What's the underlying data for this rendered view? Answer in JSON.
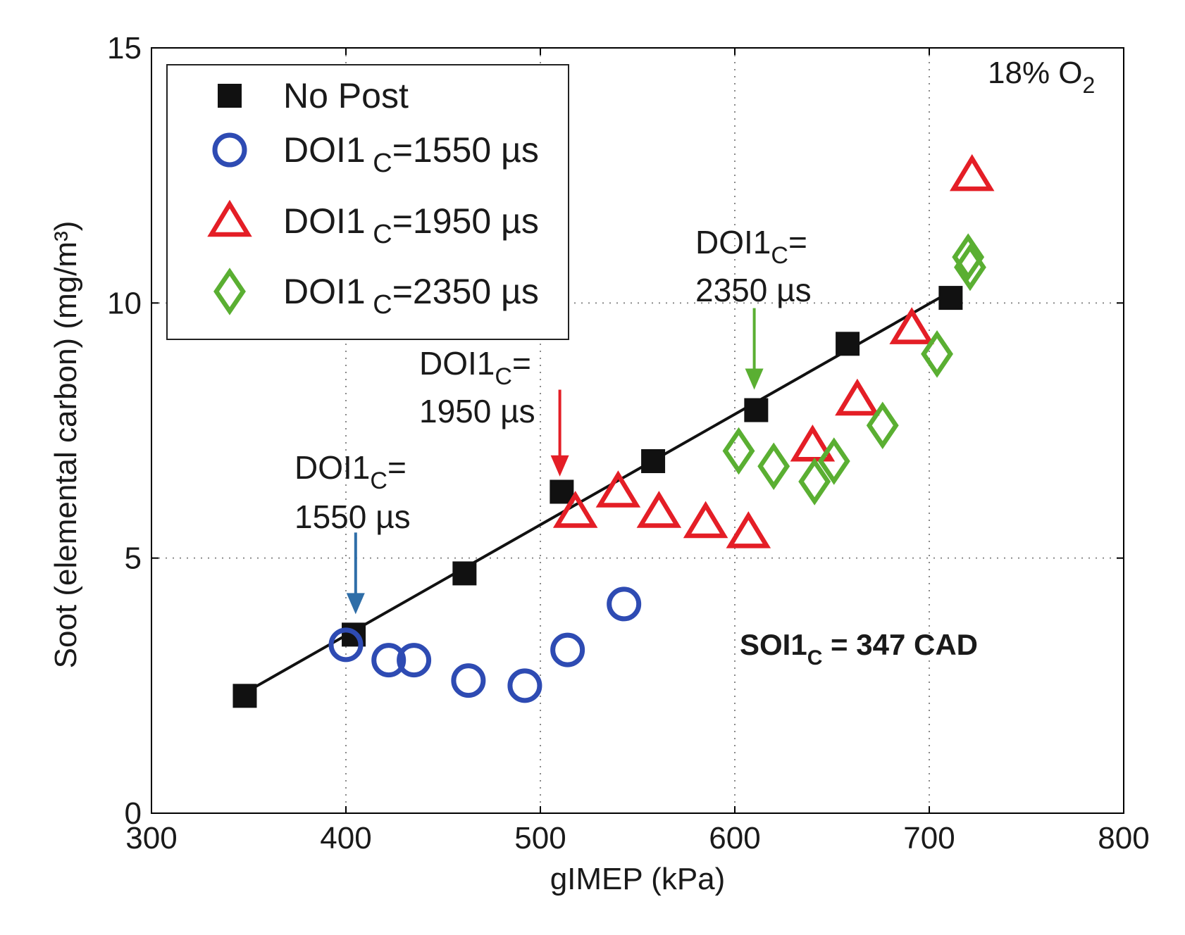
{
  "chart_data": {
    "type": "scatter",
    "title": "",
    "xlabel": "gIMEP (kPa)",
    "ylabel": "Soot (elemental carbon) (mg/m³)",
    "xlim": [
      300,
      800
    ],
    "ylim": [
      0,
      15
    ],
    "xticks": [
      300,
      400,
      500,
      600,
      700,
      800
    ],
    "yticks": [
      0,
      5,
      10,
      15
    ],
    "grid": true,
    "legend_position": "top-left",
    "series": [
      {
        "name": "No Post",
        "marker": "square",
        "color": "#000000",
        "fit_line": true,
        "x": [
          348,
          404,
          461,
          511,
          558,
          611,
          658,
          711
        ],
        "y": [
          2.3,
          3.5,
          4.7,
          6.3,
          6.9,
          7.9,
          9.2,
          10.1
        ]
      },
      {
        "name": "DOI1",
        "sub": "C",
        "suffix": "=1550 µs",
        "marker": "circle",
        "color": "#2e4bb3",
        "x": [
          400,
          422,
          435,
          463,
          492,
          514,
          543
        ],
        "y": [
          3.3,
          3.0,
          3.0,
          2.6,
          2.5,
          3.2,
          4.1
        ]
      },
      {
        "name": "DOI1",
        "sub": "C",
        "suffix": "=1950 µs",
        "marker": "triangle",
        "color": "#e41e26",
        "x": [
          518,
          540,
          561,
          585,
          607,
          640,
          663,
          691,
          722
        ],
        "y": [
          5.9,
          6.3,
          5.9,
          5.7,
          5.5,
          7.2,
          8.1,
          9.5,
          12.5
        ]
      },
      {
        "name": "DOI1",
        "sub": "C",
        "suffix": "=2350 µs",
        "marker": "diamond",
        "color": "#5aaf32",
        "x": [
          602,
          620,
          641,
          651,
          676,
          704,
          720,
          721
        ],
        "y": [
          7.1,
          6.8,
          6.5,
          6.9,
          7.6,
          9.0,
          10.9,
          10.7
        ]
      }
    ],
    "annotations": [
      {
        "line1_main": "DOI1",
        "line1_sub": "C",
        "line1_end": "=",
        "line2": "1550 µs",
        "arrow_x": 405,
        "arrow_from": 5.5,
        "arrow_to": 3.9,
        "color": "#2f6ea8"
      },
      {
        "line1_main": "DOI1",
        "line1_sub": "C",
        "line1_end": "=",
        "line2": "1950 µs",
        "arrow_x": 510,
        "arrow_from": 8.3,
        "arrow_to": 6.6,
        "color": "#e41e26"
      },
      {
        "line1_main": "DOI1",
        "line1_sub": "C",
        "line1_end": "=",
        "line2": "2350 µs",
        "arrow_x": 610,
        "arrow_from": 9.9,
        "arrow_to": 8.3,
        "color": "#5aaf32"
      }
    ],
    "soi_label": {
      "main": "SOI1",
      "sub": "C",
      "rest": " = 347 CAD"
    },
    "o2_label": {
      "main": "18% O",
      "sub": "2"
    }
  }
}
